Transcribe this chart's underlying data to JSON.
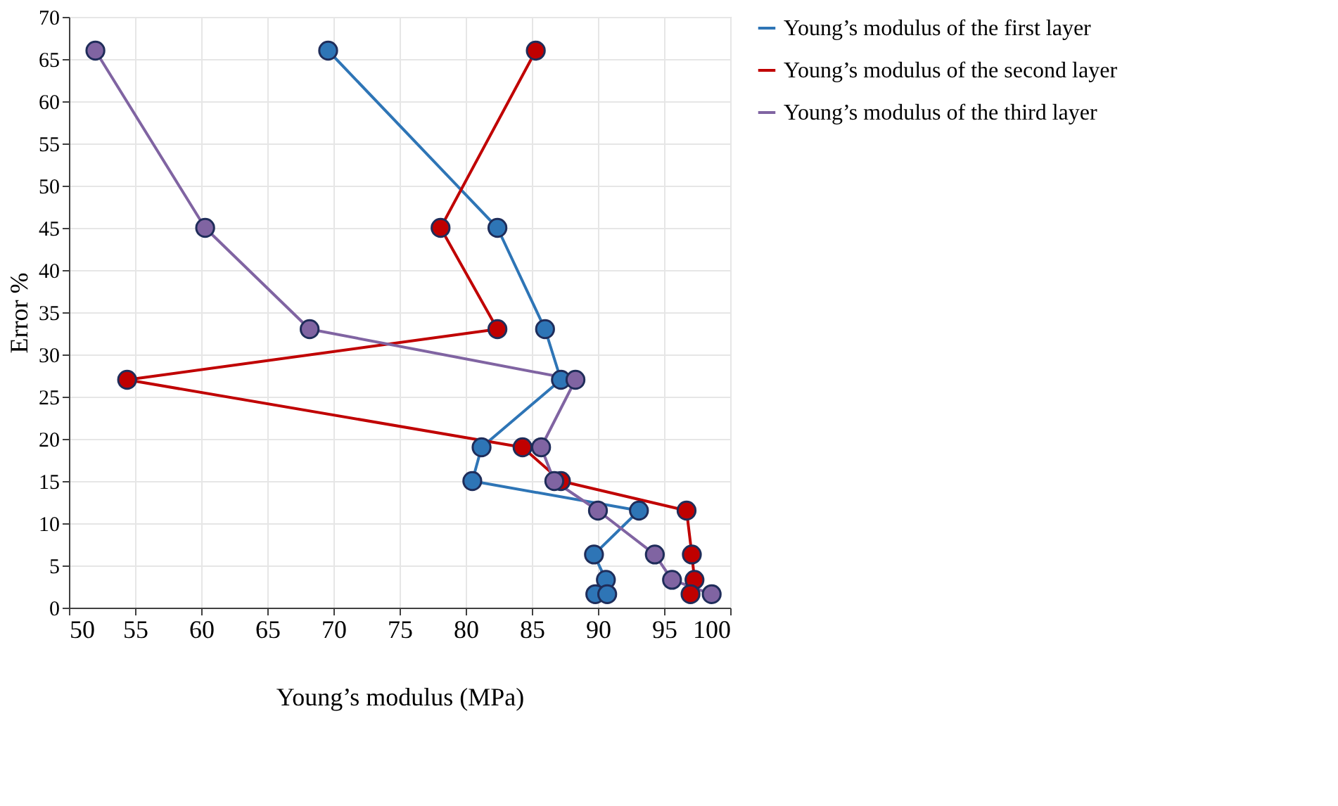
{
  "chart_data": {
    "type": "line",
    "xlabel": "Young’s modulus (MPa)",
    "ylabel": "Error %",
    "xlim": [
      50,
      100
    ],
    "xticks": [
      50,
      55,
      60,
      65,
      70,
      75,
      80,
      85,
      90,
      95,
      100
    ],
    "ylim": [
      0,
      70
    ],
    "yticks": [
      0,
      5,
      10,
      15,
      20,
      25,
      30,
      35,
      40,
      45,
      50,
      55,
      60,
      65,
      70
    ],
    "grid": true,
    "legend": "right",
    "marker": "circle",
    "line_style": "solid",
    "series": [
      {
        "name": "Young’s modulus of the first layer",
        "color": "#2e75b6",
        "x": [
          69.6,
          82.4,
          86,
          87.2,
          81.2,
          80.5,
          93.1,
          89.7,
          90.6,
          89.8,
          90.7
        ],
        "values": [
          66,
          45,
          33,
          27,
          19,
          15,
          11.5,
          6.3,
          3.3,
          1.6,
          1.6
        ]
      },
      {
        "name": "Young’s modulus of the second layer",
        "color": "#c00000",
        "x": [
          85.3,
          78.1,
          82.4,
          54.4,
          84.3,
          87.2,
          96.7,
          97.1,
          97.3,
          97
        ],
        "values": [
          66,
          45,
          33,
          27,
          19,
          15,
          11.5,
          6.3,
          3.3,
          1.6
        ]
      },
      {
        "name": "Young’s modulus of the third layer",
        "color": "#8064a2",
        "x": [
          52,
          60.3,
          68.2,
          88.3,
          85.7,
          86.7,
          90,
          94.3,
          95.6,
          98.6
        ],
        "values": [
          66,
          45,
          33,
          27,
          19,
          15,
          11.5,
          6.3,
          3.3,
          1.6
        ]
      }
    ]
  }
}
